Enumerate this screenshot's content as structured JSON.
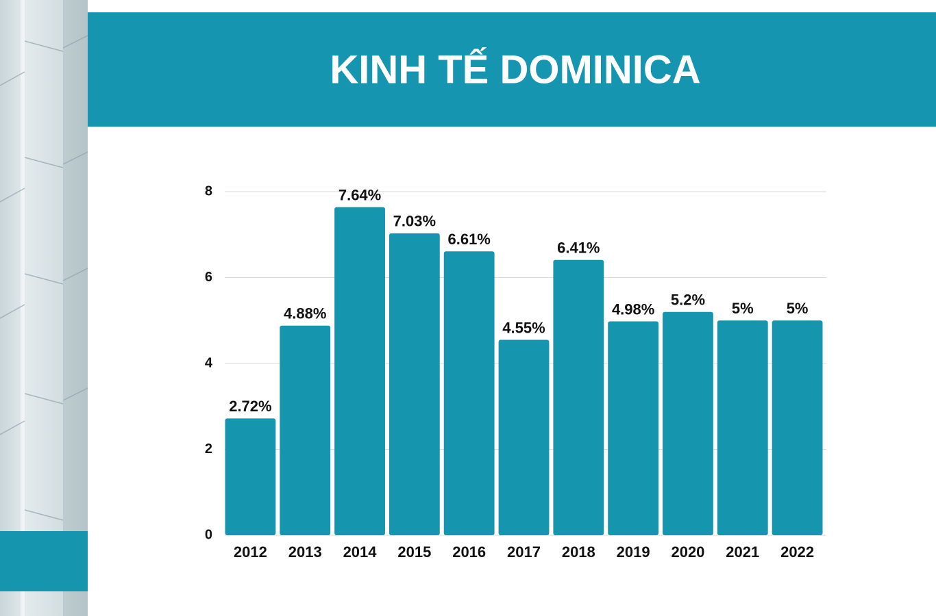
{
  "chart_data": {
    "type": "bar",
    "title": "KINH TẾ DOMINICA",
    "categories": [
      "2012",
      "2013",
      "2014",
      "2015",
      "2016",
      "2017",
      "2018",
      "2019",
      "2020",
      "2021",
      "2022"
    ],
    "values": [
      2.72,
      4.88,
      7.64,
      7.03,
      6.61,
      4.55,
      6.41,
      4.98,
      5.2,
      5,
      5
    ],
    "value_labels": [
      "2.72%",
      "4.88%",
      "7.64%",
      "7.03%",
      "6.61%",
      "4.55%",
      "6.41%",
      "4.98%",
      "5.2%",
      "5%",
      "5%"
    ],
    "color": "#1695ae",
    "ylim": [
      0,
      8
    ],
    "yticks": [
      0,
      2,
      4,
      6,
      8
    ],
    "grid": true
  }
}
